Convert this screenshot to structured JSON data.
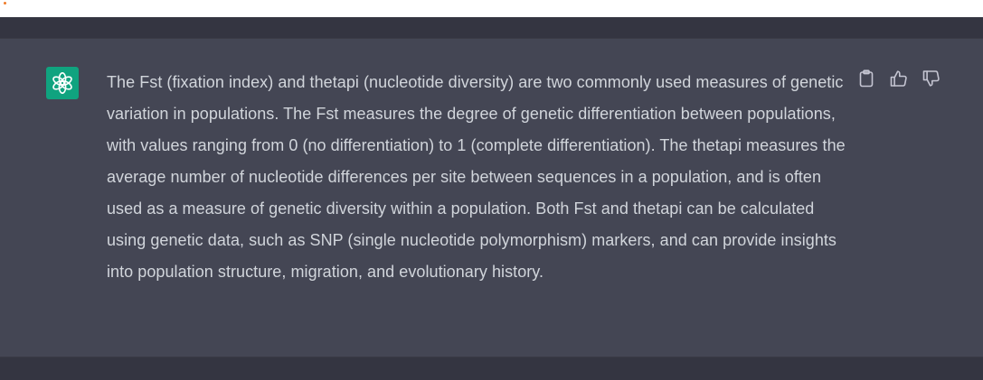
{
  "message": {
    "role": "assistant",
    "avatar_icon": "openai-logo-icon",
    "avatar_color": "#10a37f",
    "text": "The Fst (fixation index) and thetapi (nucleotide diversity) are two commonly used measures of genetic variation in populations. The Fst measures the degree of genetic differentiation between populations, with values ranging from 0 (no differentiation) to 1 (complete differentiation). The thetapi measures the average number of nucleotide differences per site between sequences in a population, and is often used as a measure of genetic diversity within a population. Both Fst and thetapi can be calculated using genetic data, such as SNP (single nucleotide polymorphism) markers, and can provide insights into population structure, migration, and evolutionary history.",
    "actions": [
      {
        "name": "copy",
        "icon": "clipboard-icon"
      },
      {
        "name": "thumbs-up",
        "icon": "thumbs-up-icon"
      },
      {
        "name": "thumbs-down",
        "icon": "thumbs-down-icon"
      }
    ]
  },
  "colors": {
    "page_background": "#343541",
    "message_background": "#444654",
    "text": "#d1d5db",
    "icon": "#c5c5d2"
  }
}
